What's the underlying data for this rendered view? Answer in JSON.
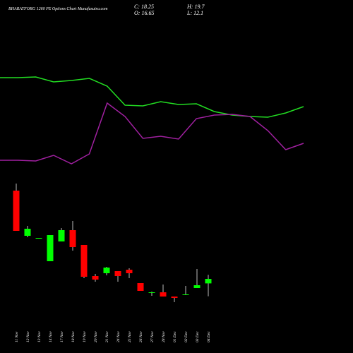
{
  "chart_data": {
    "type": "candlestick",
    "title": "BHARATFORG 1260 PE Options Chart Munafasutra.com",
    "ohlc_labels": {
      "close": "C:",
      "high": "H:",
      "open": "O:",
      "low": "L:"
    },
    "categories": [
      "11 Nov",
      "12 Nov",
      "13 Nov",
      "14 Nov",
      "17 Nov",
      "18 Nov",
      "19 Nov",
      "20 Nov",
      "21 Nov",
      "24 Nov",
      "25 Nov",
      "26 Nov",
      "27 Nov",
      "28 Nov",
      "01 Dec",
      "02 Dec",
      "03 Dec",
      "04 Dec"
    ],
    "open": [
      49.5,
      33.5,
      32.75,
      24.5,
      31.5,
      35.5,
      30.25,
      19.25,
      20.25,
      21,
      21.5,
      16.75,
      13.25,
      13.5,
      12,
      12.75,
      15,
      16.65
    ],
    "high": [
      52,
      37,
      32.75,
      33.75,
      36.25,
      38.75,
      30.25,
      20,
      22.5,
      21,
      22,
      16.75,
      13.75,
      16.25,
      12,
      15.75,
      21.75,
      19.7
    ],
    "low": [
      35.25,
      33,
      32.75,
      24.5,
      31.5,
      28.25,
      18.5,
      17.25,
      19.5,
      17.25,
      18.5,
      14,
      12.25,
      12,
      10,
      12.5,
      15,
      12.1
    ],
    "close": [
      35.25,
      36,
      32.75,
      33.75,
      35.5,
      29.5,
      19,
      18,
      22.25,
      19.25,
      20.25,
      14,
      13.5,
      12,
      11.5,
      12.75,
      16,
      18.25
    ],
    "up_color": "#00ff00",
    "down_color": "#ff0000",
    "series": [
      {
        "color": "#22dd22",
        "values": [
          89.5,
          89.5,
          89.75,
          88,
          88.5,
          89.25,
          86.5,
          79.75,
          79.5,
          81,
          80,
          80.25,
          77.5,
          76.25,
          75.75,
          75.5,
          77,
          79.25
        ]
      },
      {
        "color": "#a020a0",
        "values": [
          60.25,
          60.25,
          60,
          62,
          59,
          62.5,
          80.5,
          75.75,
          68,
          68.75,
          67.75,
          75,
          76.25,
          76.5,
          75.75,
          70.75,
          64,
          66.25
        ]
      }
    ],
    "ylim": [
      0,
      117
    ]
  }
}
